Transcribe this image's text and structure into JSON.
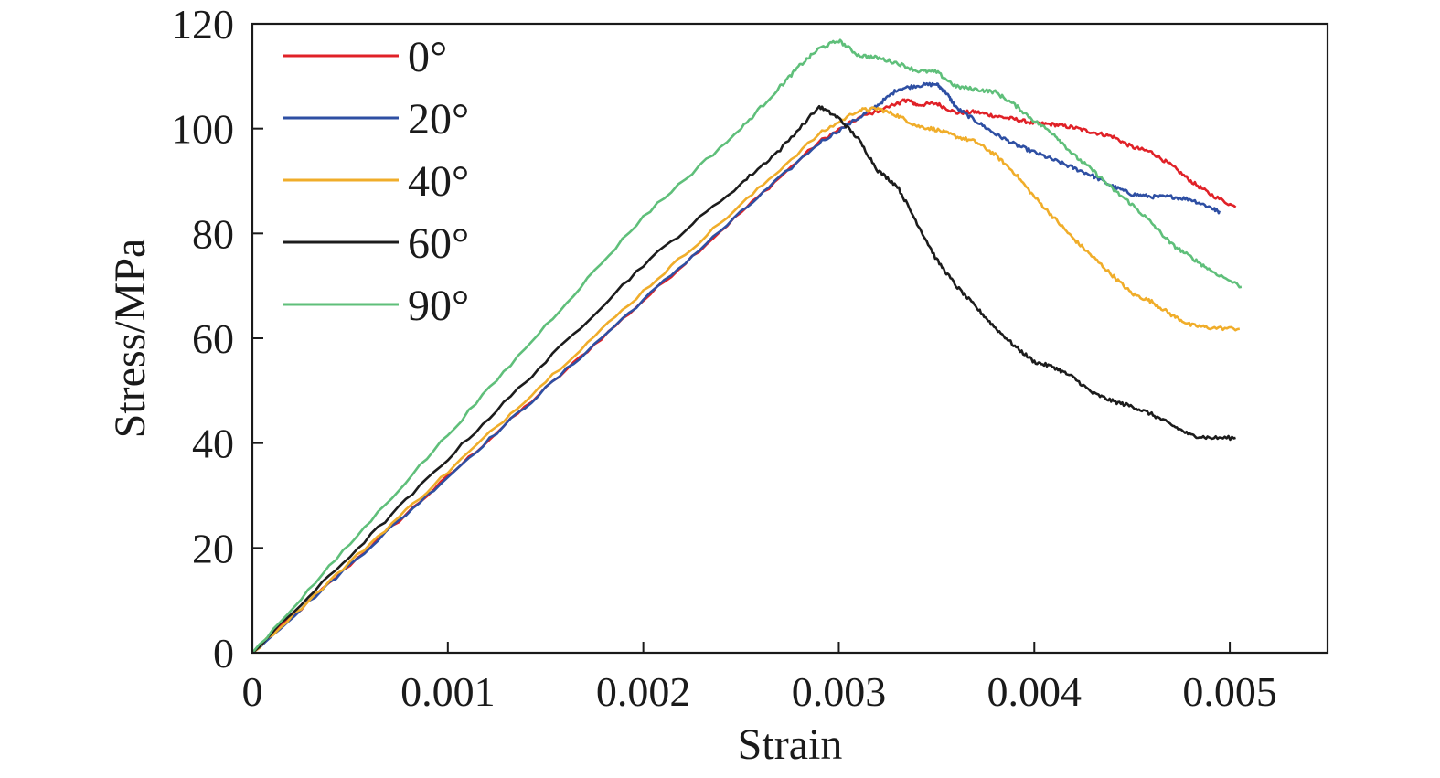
{
  "chart_data": {
    "type": "line",
    "xlabel": "Strain",
    "ylabel": "Stress/MPa",
    "xlim": [
      0,
      0.0055
    ],
    "ylim": [
      0,
      120
    ],
    "xticks": [
      0,
      0.001,
      0.002,
      0.003,
      0.004,
      0.005
    ],
    "xtick_labels": [
      "0",
      "0.001",
      "0.002",
      "0.003",
      "0.004",
      "0.005"
    ],
    "yticks": [
      0,
      20,
      40,
      60,
      80,
      100,
      120
    ],
    "ytick_labels": [
      "0",
      "20",
      "40",
      "60",
      "80",
      "100",
      "120"
    ],
    "grid": false,
    "legend_position": "top-left",
    "series": [
      {
        "name": "0°",
        "color": "#e02127",
        "points": [
          [
            0,
            0
          ],
          [
            0.0005,
            16.8
          ],
          [
            0.001,
            33.6
          ],
          [
            0.0015,
            50.4
          ],
          [
            0.002,
            67.2
          ],
          [
            0.0025,
            84
          ],
          [
            0.0029,
            97.5
          ],
          [
            0.0031,
            102
          ],
          [
            0.0033,
            104.8
          ],
          [
            0.00335,
            105.5
          ],
          [
            0.0034,
            104.5
          ],
          [
            0.0035,
            104.8
          ],
          [
            0.0036,
            103
          ],
          [
            0.0037,
            103.2
          ],
          [
            0.0038,
            102.4
          ],
          [
            0.0039,
            101.8
          ],
          [
            0.004,
            101
          ],
          [
            0.0041,
            100.8
          ],
          [
            0.0042,
            100.2
          ],
          [
            0.0043,
            99.3
          ],
          [
            0.0044,
            98.5
          ],
          [
            0.0045,
            96.5
          ],
          [
            0.0046,
            95.5
          ],
          [
            0.0047,
            93
          ],
          [
            0.0048,
            90
          ],
          [
            0.0049,
            87.5
          ],
          [
            0.00503,
            85
          ]
        ]
      },
      {
        "name": "20°",
        "color": "#2e4fa3",
        "points": [
          [
            0,
            0
          ],
          [
            0.0005,
            16.8
          ],
          [
            0.001,
            33.6
          ],
          [
            0.0015,
            50.4
          ],
          [
            0.002,
            67.3
          ],
          [
            0.0025,
            84
          ],
          [
            0.0029,
            97.3
          ],
          [
            0.0031,
            102
          ],
          [
            0.0032,
            104.5
          ],
          [
            0.0033,
            107.5
          ],
          [
            0.0034,
            108.2
          ],
          [
            0.0035,
            108.5
          ],
          [
            0.00355,
            106.8
          ],
          [
            0.0036,
            104
          ],
          [
            0.0037,
            101.5
          ],
          [
            0.0038,
            99
          ],
          [
            0.0039,
            97
          ],
          [
            0.004,
            95.5
          ],
          [
            0.0041,
            94
          ],
          [
            0.0042,
            92.5
          ],
          [
            0.0043,
            91
          ],
          [
            0.0044,
            89
          ],
          [
            0.0045,
            87.5
          ],
          [
            0.0046,
            87
          ],
          [
            0.0047,
            87
          ],
          [
            0.0048,
            86.5
          ],
          [
            0.0049,
            85
          ],
          [
            0.00495,
            84
          ]
        ]
      },
      {
        "name": "40°",
        "color": "#f0ad2a",
        "points": [
          [
            0,
            0
          ],
          [
            0.0005,
            17.3
          ],
          [
            0.001,
            34.5
          ],
          [
            0.0015,
            51.8
          ],
          [
            0.002,
            69
          ],
          [
            0.0025,
            85.5
          ],
          [
            0.0029,
            99
          ],
          [
            0.0031,
            103.5
          ],
          [
            0.0032,
            103.8
          ],
          [
            0.0033,
            102.5
          ],
          [
            0.0034,
            100.5
          ],
          [
            0.0035,
            99.8
          ],
          [
            0.0036,
            98.5
          ],
          [
            0.0037,
            97.5
          ],
          [
            0.0038,
            95
          ],
          [
            0.0039,
            91.5
          ],
          [
            0.004,
            87
          ],
          [
            0.0041,
            83
          ],
          [
            0.0042,
            79
          ],
          [
            0.0043,
            75.5
          ],
          [
            0.0044,
            72
          ],
          [
            0.0045,
            68.5
          ],
          [
            0.0046,
            67
          ],
          [
            0.0047,
            64.5
          ],
          [
            0.0048,
            62.5
          ],
          [
            0.0049,
            62
          ],
          [
            0.00505,
            61.8
          ]
        ]
      },
      {
        "name": "60°",
        "color": "#1c1c1c",
        "points": [
          [
            0,
            0
          ],
          [
            0.0005,
            18.5
          ],
          [
            0.001,
            37
          ],
          [
            0.0015,
            55.5
          ],
          [
            0.002,
            74
          ],
          [
            0.0025,
            89.5
          ],
          [
            0.0027,
            96
          ],
          [
            0.0029,
            104.2
          ],
          [
            0.003,
            102
          ],
          [
            0.0031,
            98
          ],
          [
            0.0032,
            92
          ],
          [
            0.0033,
            89
          ],
          [
            0.0034,
            82
          ],
          [
            0.0035,
            75
          ],
          [
            0.0036,
            70
          ],
          [
            0.0037,
            66
          ],
          [
            0.0038,
            62
          ],
          [
            0.0039,
            58.5
          ],
          [
            0.004,
            55.5
          ],
          [
            0.0041,
            54.5
          ],
          [
            0.0042,
            52.5
          ],
          [
            0.0043,
            49.5
          ],
          [
            0.0044,
            48
          ],
          [
            0.0045,
            47
          ],
          [
            0.0046,
            45.5
          ],
          [
            0.0047,
            43.5
          ],
          [
            0.0048,
            41.5
          ],
          [
            0.0049,
            41
          ],
          [
            0.00503,
            41
          ]
        ]
      },
      {
        "name": "90°",
        "color": "#5fbf7a",
        "points": [
          [
            0,
            0
          ],
          [
            0.0005,
            20.8
          ],
          [
            0.001,
            41.6
          ],
          [
            0.0015,
            62.4
          ],
          [
            0.002,
            83.2
          ],
          [
            0.0025,
            100
          ],
          [
            0.0027,
            108
          ],
          [
            0.0028,
            112
          ],
          [
            0.0029,
            115.3
          ],
          [
            0.003,
            116.8
          ],
          [
            0.0031,
            114
          ],
          [
            0.0032,
            113.5
          ],
          [
            0.0033,
            112.5
          ],
          [
            0.0034,
            111
          ],
          [
            0.0035,
            110.8
          ],
          [
            0.0036,
            108
          ],
          [
            0.0037,
            107.5
          ],
          [
            0.0038,
            107
          ],
          [
            0.0039,
            104.5
          ],
          [
            0.004,
            101.5
          ],
          [
            0.0041,
            99
          ],
          [
            0.0042,
            95
          ],
          [
            0.0043,
            92
          ],
          [
            0.0044,
            88.5
          ],
          [
            0.0045,
            85.5
          ],
          [
            0.0046,
            82
          ],
          [
            0.0047,
            78
          ],
          [
            0.0048,
            75.5
          ],
          [
            0.0049,
            73
          ],
          [
            0.00506,
            69.8
          ]
        ]
      }
    ]
  }
}
